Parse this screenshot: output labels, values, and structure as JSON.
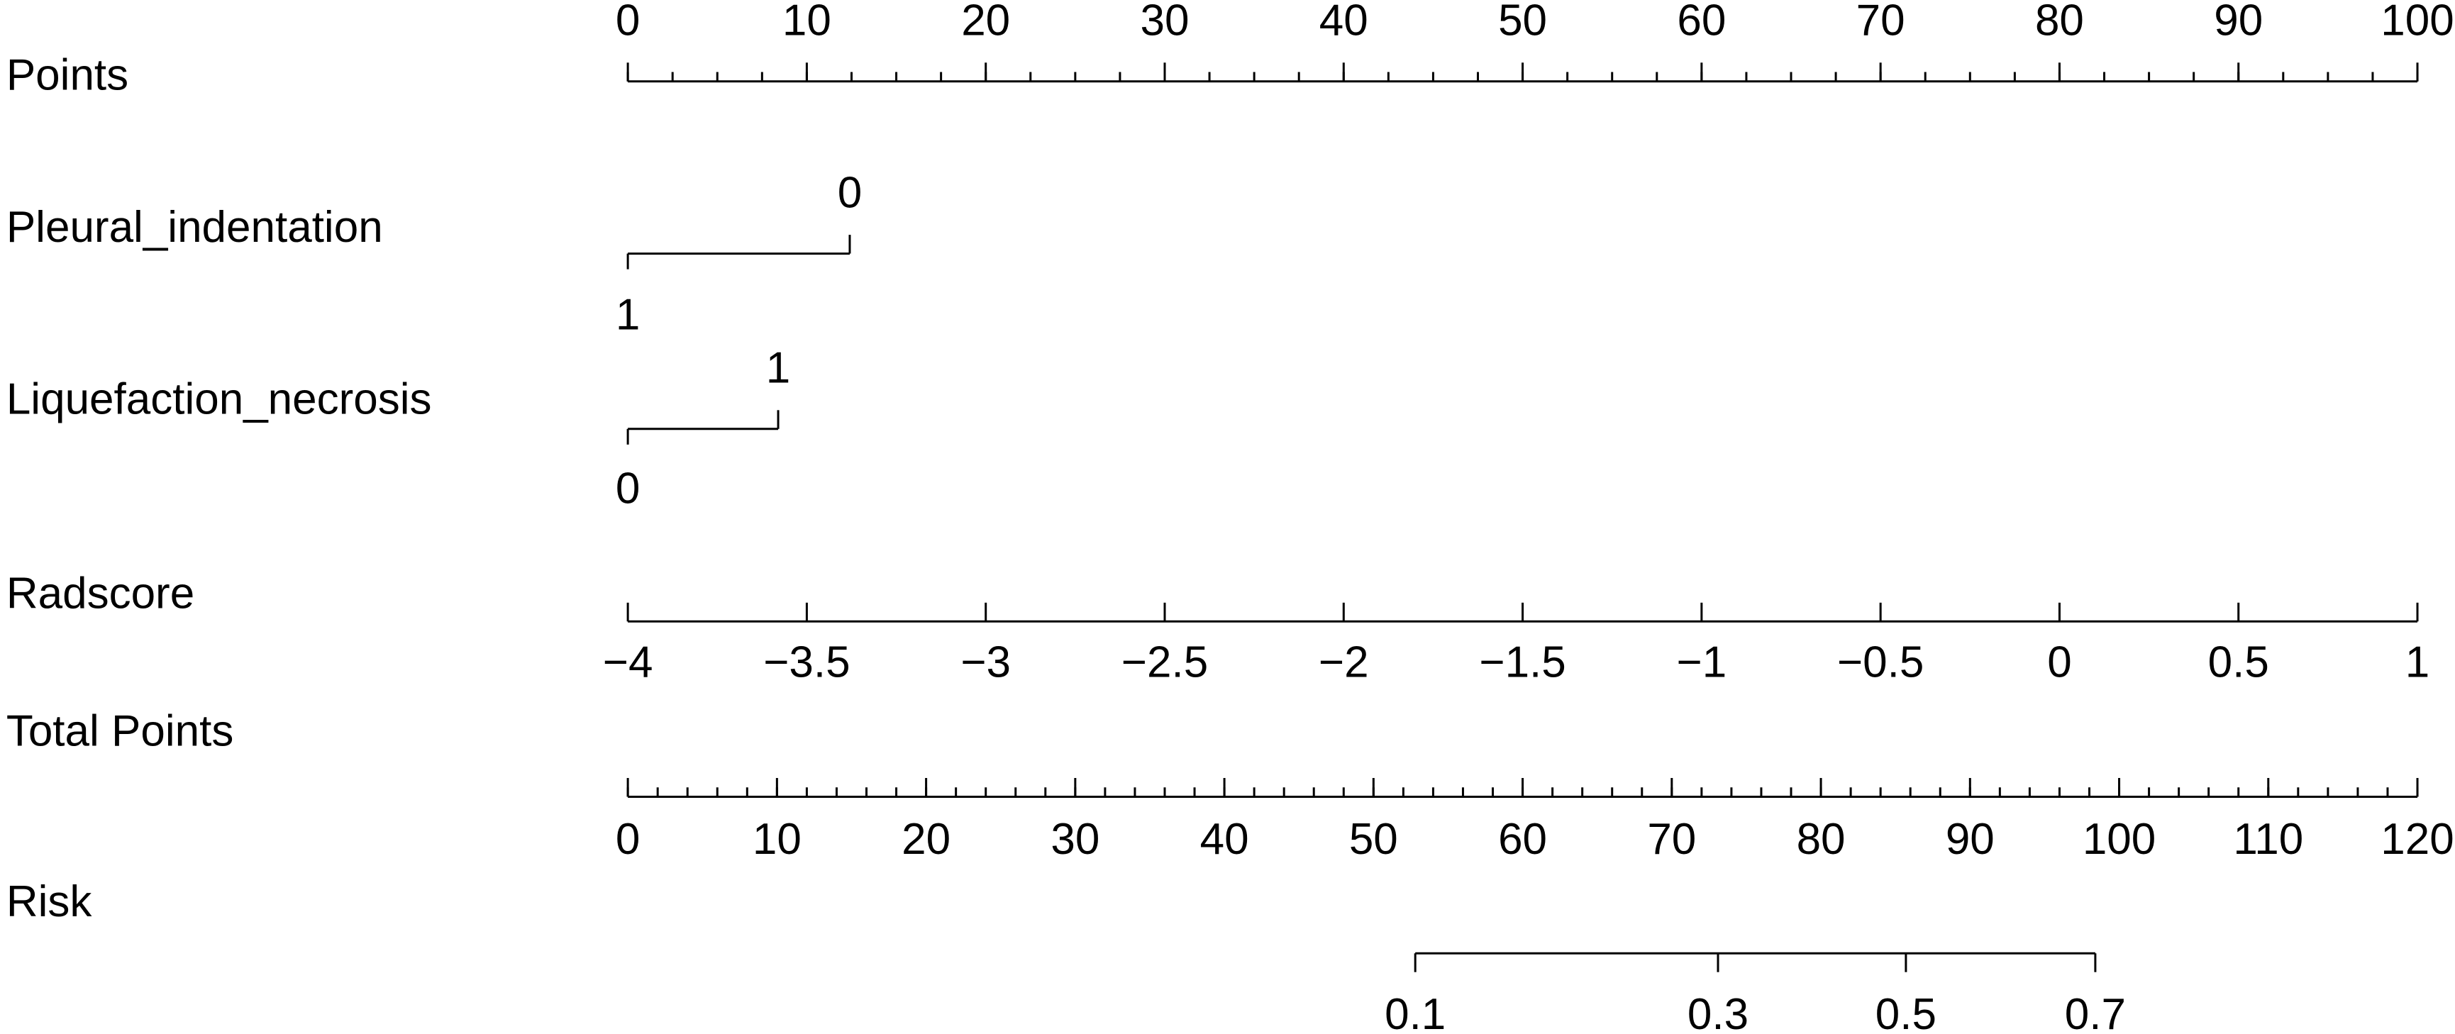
{
  "chart_data": {
    "type": "nomogram",
    "points_axis": {
      "name": "Points",
      "xlim": [
        0,
        100
      ],
      "xticks": [
        0,
        10,
        20,
        30,
        40,
        50,
        60,
        70,
        80,
        90,
        100
      ],
      "minor_step": 2.5
    },
    "variables": [
      {
        "name": "Pleural_indentation",
        "ticks": [
          1,
          0
        ],
        "points": [
          0,
          12.4
        ]
      },
      {
        "name": "Liquefaction_necrosis",
        "ticks": [
          0,
          1
        ],
        "points": [
          0,
          8.4
        ]
      },
      {
        "name": "Radscore",
        "ticks": [
          {
            "value": -4,
            "label": "−4"
          },
          {
            "value": -3.5,
            "label": "−3.5"
          },
          {
            "value": -3,
            "label": "−3"
          },
          {
            "value": -2.5,
            "label": "−2.5"
          },
          {
            "value": -2,
            "label": "−2"
          },
          {
            "value": -1.5,
            "label": "−1.5"
          },
          {
            "value": -1,
            "label": "−1"
          },
          {
            "value": -0.5,
            "label": "−0.5"
          },
          0,
          0.5,
          1
        ],
        "points": [
          0,
          10,
          20,
          30,
          40,
          50,
          60,
          70,
          80,
          90,
          100
        ]
      }
    ],
    "total_axis": {
      "name": "Total Points",
      "xlim": [
        0,
        120
      ],
      "xticks": [
        0,
        10,
        20,
        30,
        40,
        50,
        60,
        70,
        80,
        90,
        100,
        110,
        120
      ],
      "minor_step": 2
    },
    "risk": {
      "name": "Risk",
      "ticks": [
        0.1,
        0.3,
        0.5,
        0.7
      ],
      "total_points": [
        52.8,
        73.1,
        85.7,
        98.4
      ]
    }
  }
}
